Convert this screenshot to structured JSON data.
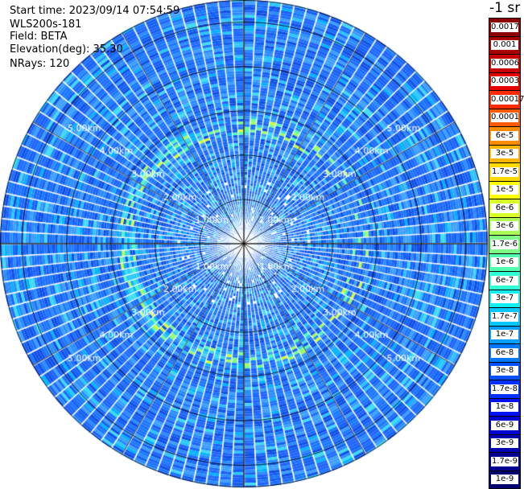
{
  "info": {
    "start_time": "Start time: 2023/09/14 07:54:59",
    "device": "WLS200s-181",
    "field": "Field: BETA",
    "elevation": "Elevation(deg): 35.30",
    "nrays": "NRays: 120"
  },
  "colorbar": {
    "unit": "-1 sr",
    "labels": [
      "0.0017",
      "0.001",
      "0.0006",
      "0.0003",
      "0.00017",
      "0.0001",
      "6e-5",
      "3e-5",
      "1.7e-5",
      "1e-5",
      "6e-6",
      "3e-6",
      "1.7e-6",
      "1e-6",
      "6e-7",
      "3e-7",
      "1.7e-7",
      "1e-7",
      "6e-8",
      "3e-8",
      "1.7e-8",
      "1e-8",
      "6e-9",
      "3e-9",
      "1.7e-9",
      "1e-9"
    ],
    "colors": [
      "#8b0000",
      "#a80000",
      "#c80000",
      "#e60000",
      "#ff2a00",
      "#ff5a00",
      "#ff8c00",
      "#ffb400",
      "#ffd800",
      "#ffff00",
      "#d8ff28",
      "#a8ff58",
      "#7cff84",
      "#52ffae",
      "#2effd4",
      "#10eef0",
      "#00c8ff",
      "#00a0ff",
      "#0078ff",
      "#0050ff",
      "#0030ff",
      "#0010f0",
      "#0000d0",
      "#0000b0",
      "#000090",
      "#000070"
    ]
  },
  "chart_data": {
    "type": "heatmap",
    "projection": "polar PPI scan",
    "field": "BETA",
    "elevation_deg": 35.3,
    "n_rays": 120,
    "range_ring_labels": [
      "1.00km",
      "2.00km",
      "3.00km",
      "4.00km",
      "5.00km"
    ],
    "range_rings_km": [
      1,
      2,
      3,
      4,
      5
    ],
    "max_range_km": 5.5,
    "dominant_value": "~3e-8 (blue)",
    "enhanced_ring_km": 2.6,
    "enhanced_ring_value": "~1e-6 to 3e-6 (green/yellow)"
  }
}
